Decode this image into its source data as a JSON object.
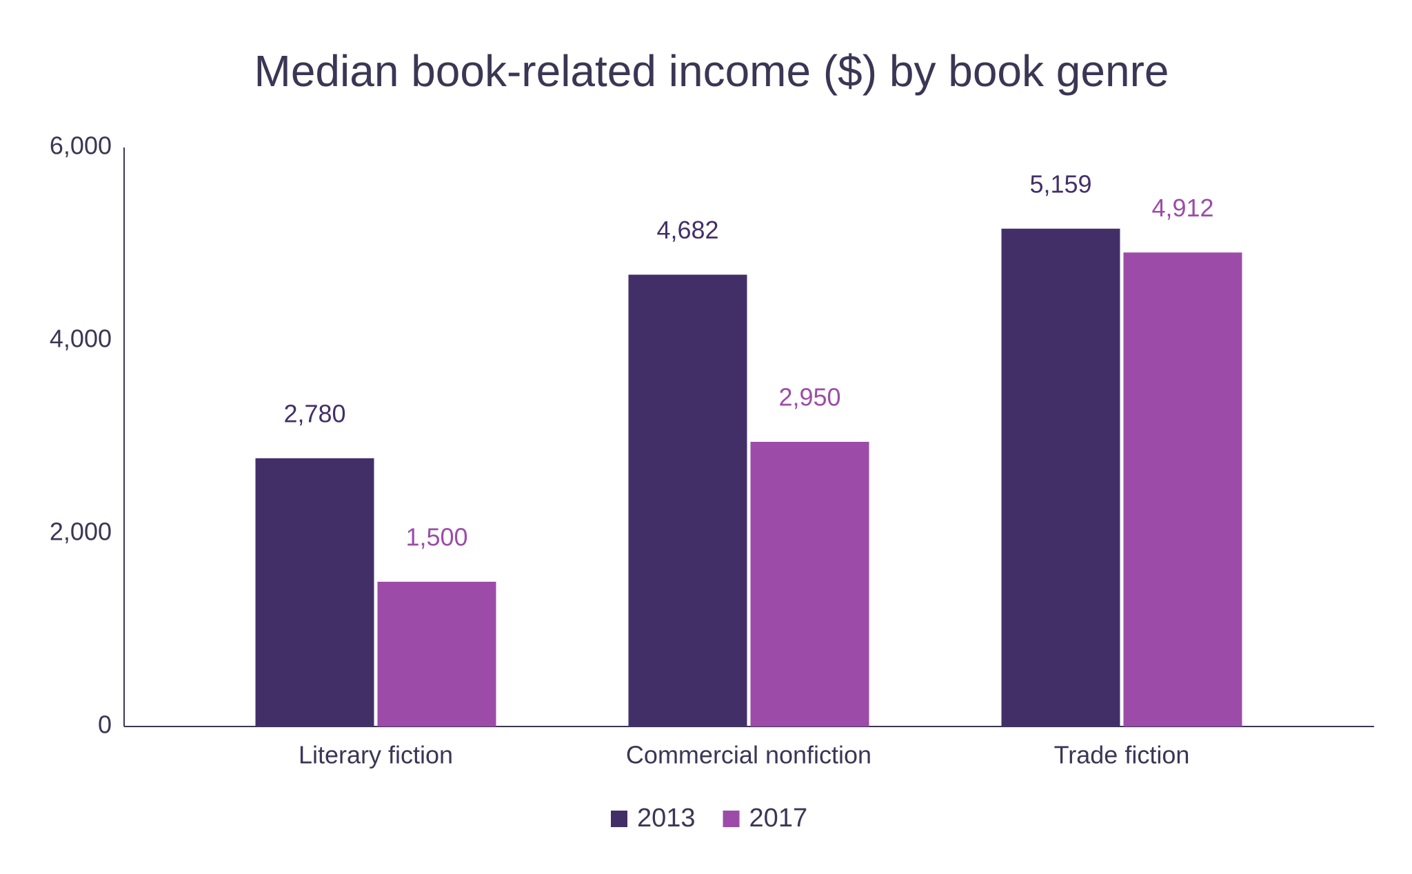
{
  "chart_data": {
    "type": "bar",
    "title": "Median book-related income ($) by book genre",
    "categories": [
      "Literary fiction",
      "Commercial nonfiction",
      "Trade fiction"
    ],
    "series": [
      {
        "name": "2013",
        "color": "#432f68",
        "values": [
          2780,
          4682,
          5159
        ],
        "value_labels": [
          "2,780",
          "4,682",
          "5,159"
        ]
      },
      {
        "name": "2017",
        "color": "#9c4ca8",
        "values": [
          1500,
          2950,
          4912
        ],
        "value_labels": [
          "1,500",
          "2,950",
          "4,912"
        ]
      }
    ],
    "ylim": [
      0,
      6000
    ],
    "yticks": [
      0,
      {
        "value": 2000,
        "label": "2,000"
      },
      {
        "value": 4000,
        "label": "4,000"
      },
      {
        "value": 6000,
        "label": "6,000"
      }
    ],
    "grid": false,
    "legend": "bottom"
  }
}
